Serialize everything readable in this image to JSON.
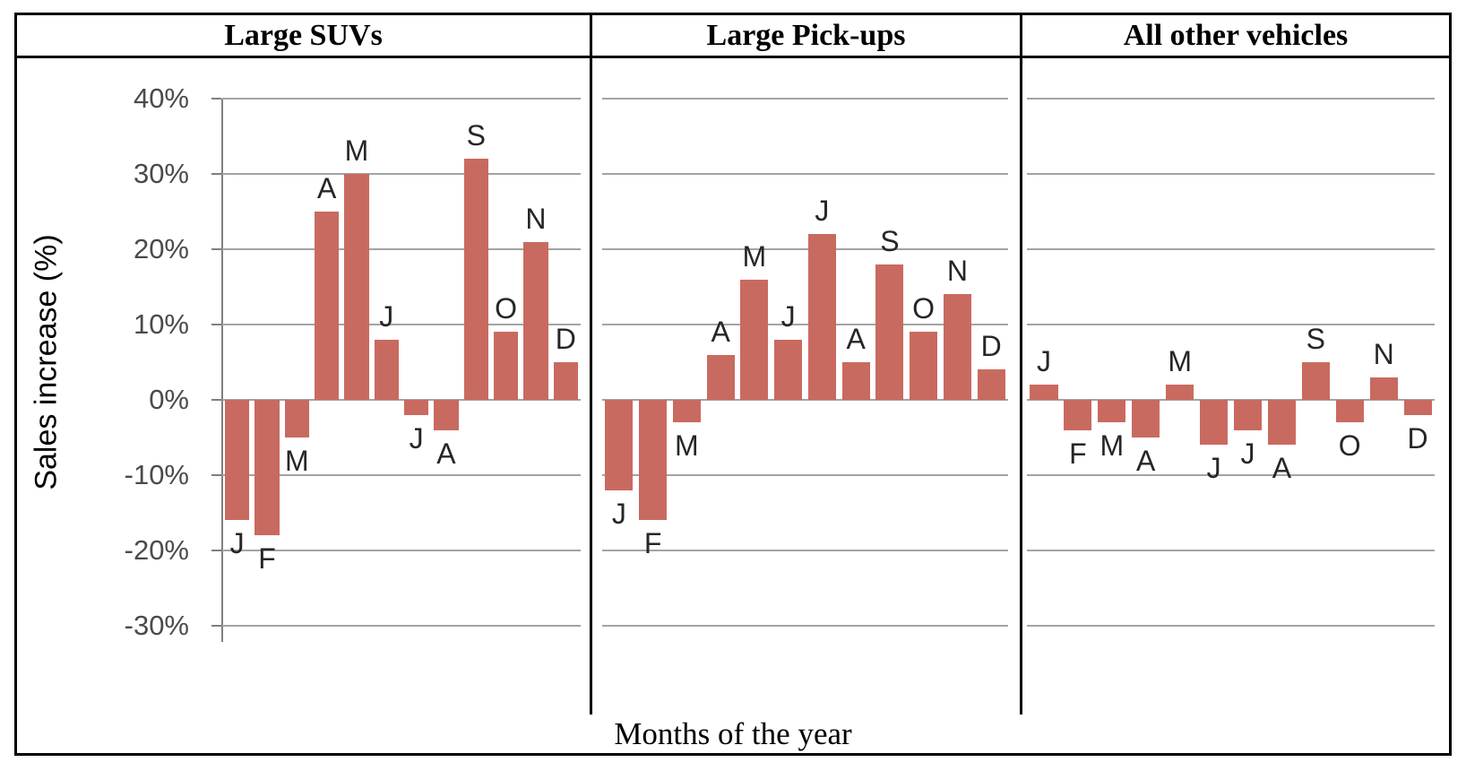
{
  "figure": {
    "y_axis_title": "Sales increase (%)",
    "x_axis_title": "Months of the year",
    "y_tick_labels": [
      "40%",
      "30%",
      "20%",
      "10%",
      "0%",
      "-10%",
      "-20%",
      "-30%"
    ]
  },
  "colors": {
    "bar": "#c96a60",
    "gridline": "#a3a3a3",
    "axis": "#7f7f7f",
    "tick_label": "#4a4a4a",
    "month_label": "#262626",
    "border": "#000000"
  },
  "chart_data": [
    {
      "type": "bar",
      "title": "Large SUVs",
      "categories": [
        "J",
        "F",
        "M",
        "A",
        "M",
        "J",
        "J",
        "A",
        "S",
        "O",
        "N",
        "D"
      ],
      "values": [
        -16,
        -18,
        -5,
        25,
        30,
        8,
        -2,
        -4,
        32,
        9,
        21,
        5
      ],
      "xlabel": "Months of the year",
      "ylabel": "Sales increase (%)",
      "ylim": [
        -30,
        40
      ],
      "ytick_step": 10,
      "grid": true,
      "legend": false
    },
    {
      "type": "bar",
      "title": "Large Pick-ups",
      "categories": [
        "J",
        "F",
        "M",
        "A",
        "M",
        "J",
        "J",
        "A",
        "S",
        "O",
        "N",
        "D"
      ],
      "values": [
        -12,
        -16,
        -3,
        6,
        16,
        8,
        22,
        5,
        18,
        9,
        14,
        4
      ],
      "xlabel": "Months of the year",
      "ylabel": "Sales increase (%)",
      "ylim": [
        -30,
        40
      ],
      "ytick_step": 10,
      "grid": true,
      "legend": false
    },
    {
      "type": "bar",
      "title": "All other vehicles",
      "categories": [
        "J",
        "F",
        "M",
        "A",
        "M",
        "J",
        "J",
        "A",
        "S",
        "O",
        "N",
        "D"
      ],
      "values": [
        2,
        -4,
        -3,
        -5,
        2,
        -6,
        -4,
        -6,
        5,
        -3,
        3,
        -2
      ],
      "xlabel": "Months of the year",
      "ylabel": "Sales increase (%)",
      "ylim": [
        -30,
        40
      ],
      "ytick_step": 10,
      "grid": true,
      "legend": false
    }
  ]
}
